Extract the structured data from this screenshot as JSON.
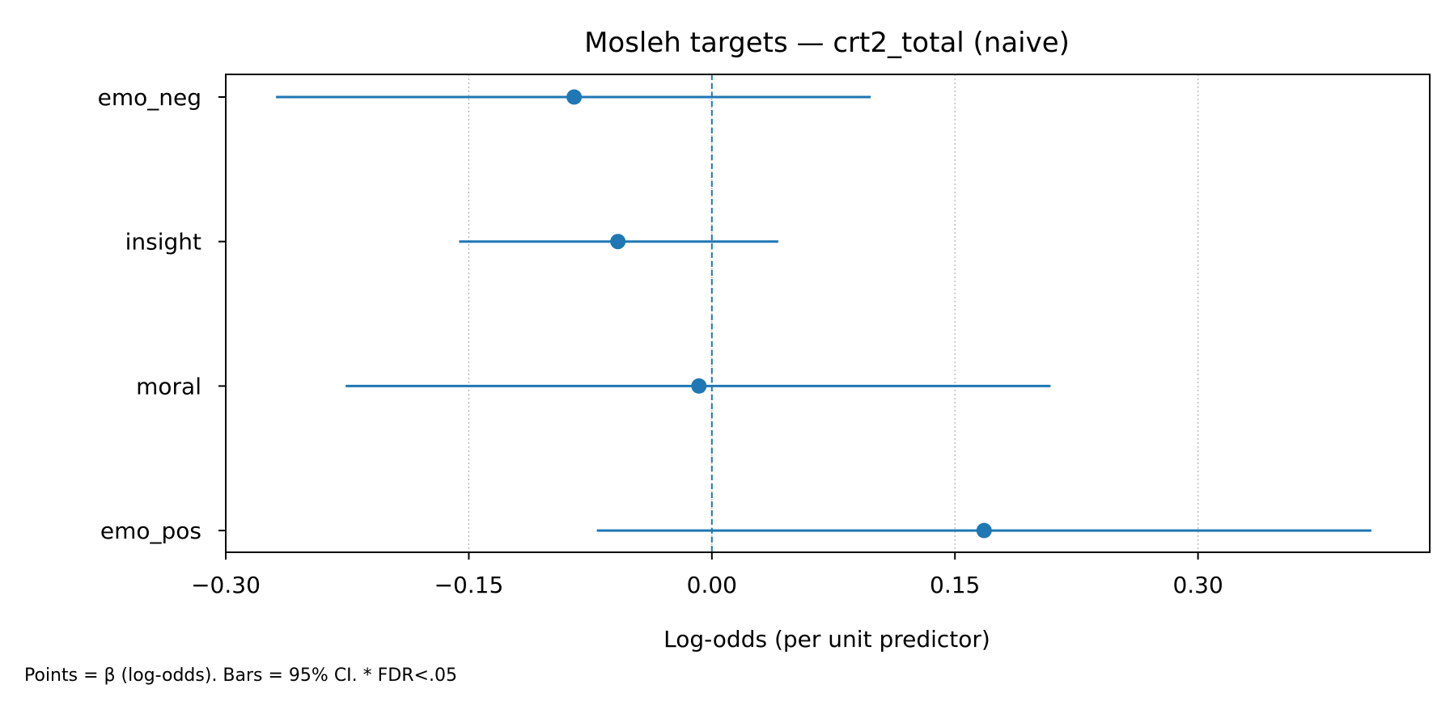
{
  "chart_data": {
    "type": "forest",
    "title": "Mosleh targets — crt2_total (naive)",
    "xlabel": "Log-odds (per unit predictor)",
    "ylabel": "",
    "xlim": [
      -0.3,
      0.443
    ],
    "xticks": [
      -0.3,
      -0.15,
      0.0,
      0.15,
      0.3
    ],
    "xtick_labels": [
      "−0.30",
      "−0.15",
      "0.00",
      "0.15",
      "0.30"
    ],
    "grid": "x, dotted",
    "reference_line": 0.0,
    "categories": [
      "emo_neg",
      "insight",
      "moral",
      "emo_pos"
    ],
    "estimates": [
      -0.085,
      -0.058,
      -0.008,
      0.168
    ],
    "ci_lower": [
      -0.269,
      -0.156,
      -0.226,
      -0.071
    ],
    "ci_upper": [
      0.098,
      0.041,
      0.209,
      0.407
    ],
    "series_color": "#1f77b4",
    "caption": "Points = β (log-odds). Bars = 95% CI. * FDR<.05"
  }
}
